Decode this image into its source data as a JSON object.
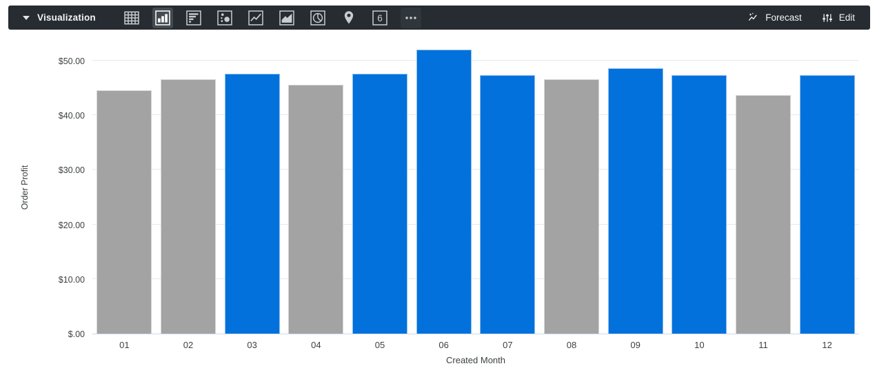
{
  "toolbar": {
    "title": "Visualization",
    "bg_color": "#262c31",
    "viz_types": [
      {
        "name": "table-chart",
        "selected": false
      },
      {
        "name": "column-chart",
        "selected": true
      },
      {
        "name": "bar-chart",
        "selected": false
      },
      {
        "name": "scatter-chart",
        "selected": false
      },
      {
        "name": "line-chart",
        "selected": false
      },
      {
        "name": "area-chart",
        "selected": false
      },
      {
        "name": "pie-chart",
        "selected": false
      },
      {
        "name": "map-chart",
        "selected": false
      },
      {
        "name": "single-value",
        "selected": false,
        "glyph": "6"
      },
      {
        "name": "more-viz-options",
        "selected": false,
        "subtle": true
      }
    ],
    "forecast_label": "Forecast",
    "edit_label": "Edit"
  },
  "chart_data": {
    "type": "bar",
    "title": "",
    "xlabel": "Created Month",
    "ylabel": "Order Profit",
    "categories": [
      "01",
      "02",
      "03",
      "04",
      "05",
      "06",
      "07",
      "08",
      "09",
      "10",
      "11",
      "12"
    ],
    "values": [
      44.5,
      46.5,
      47.6,
      45.6,
      47.6,
      52.0,
      47.3,
      46.6,
      48.6,
      47.3,
      43.6,
      47.3
    ],
    "point_colors": [
      "gray",
      "gray",
      "blue",
      "gray",
      "blue",
      "blue",
      "blue",
      "gray",
      "blue",
      "blue",
      "gray",
      "blue"
    ],
    "palette": {
      "blue": "#0271dc",
      "gray": "#a3a3a3"
    },
    "ytick_values": [
      0,
      10,
      20,
      30,
      40,
      50
    ],
    "ytick_labels": [
      "$.00",
      "$10.00",
      "$20.00",
      "$30.00",
      "$40.00",
      "$50.00"
    ],
    "ylim": [
      0,
      53.5
    ],
    "grid": true,
    "legend": "none"
  }
}
